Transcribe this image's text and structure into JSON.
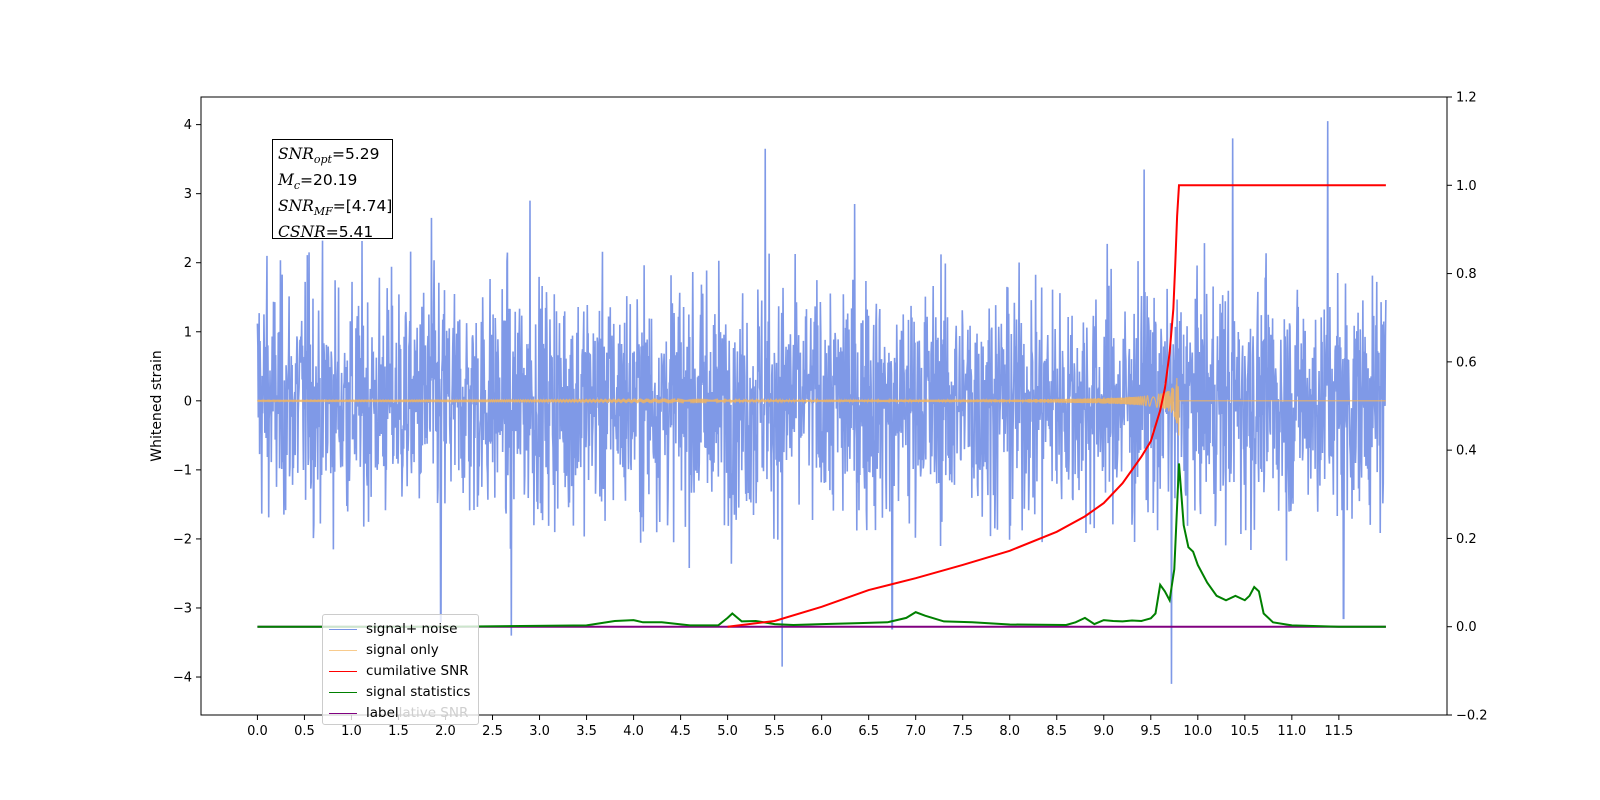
{
  "chart_data": {
    "type": "line",
    "ylabel": "Whitened strain",
    "xlim": [
      -0.6,
      12.65
    ],
    "ylim_left": [
      -4.55,
      4.4
    ],
    "ylim_right": [
      -0.2,
      1.2
    ],
    "x_ticks": [
      "0.0",
      "0.5",
      "1.0",
      "1.5",
      "2.0",
      "2.5",
      "3.0",
      "3.5",
      "4.0",
      "4.5",
      "5.0",
      "5.5",
      "6.0",
      "6.5",
      "7.0",
      "7.5",
      "8.0",
      "8.5",
      "9.0",
      "9.5",
      "10.0",
      "10.5",
      "11.0",
      "11.5"
    ],
    "y_ticks_left": [
      "4",
      "3",
      "2",
      "1",
      "0",
      "−1",
      "−2",
      "−3",
      "−4"
    ],
    "y_ticks_right": [
      "1.2",
      "1.0",
      "0.8",
      "0.6",
      "0.4",
      "0.2",
      "0.0",
      "−0.2"
    ],
    "stats": {
      "snr_opt": "=5.29",
      "mc": "=20.19",
      "snr_mf": "=[4.74]",
      "csnr": "=5.41"
    },
    "series": [
      {
        "name": "signal+ noise",
        "axis": "left",
        "color": "#7894e6",
        "x_range": [
          0.0,
          12.0
        ],
        "envelope": "noise ~ ±2.4 typical",
        "spikes": [
          [
            0.02,
            1.27
          ],
          [
            0.1,
            2.1
          ],
          [
            0.55,
            2.15
          ],
          [
            1.85,
            2.65
          ],
          [
            1.95,
            -3.2
          ],
          [
            2.7,
            -3.4
          ],
          [
            2.9,
            2.9
          ],
          [
            5.4,
            3.65
          ],
          [
            5.58,
            -3.85
          ],
          [
            6.35,
            2.85
          ],
          [
            6.75,
            -3.3
          ],
          [
            9.43,
            3.35
          ],
          [
            9.72,
            -4.1
          ],
          [
            10.37,
            3.8
          ],
          [
            11.38,
            4.05
          ],
          [
            11.55,
            -3.15
          ]
        ]
      },
      {
        "name": "signal only",
        "axis": "left",
        "color": "#f5b55c",
        "description_points": [
          [
            0.0,
            0.0
          ],
          [
            8.0,
            0.04
          ],
          [
            9.0,
            0.12
          ],
          [
            9.5,
            0.3
          ],
          [
            9.7,
            0.6
          ],
          [
            9.78,
            0.95
          ]
        ]
      },
      {
        "name": "cumilative SNR",
        "axis": "right",
        "color": "#ff0000",
        "x": [
          5.0,
          5.5,
          6.0,
          6.5,
          7.0,
          7.5,
          8.0,
          8.5,
          8.8,
          9.0,
          9.2,
          9.4,
          9.5,
          9.6,
          9.65,
          9.7,
          9.74,
          9.76,
          9.78,
          9.8,
          9.9,
          10.5,
          11.0,
          12.0
        ],
        "values": [
          0.0,
          0.013,
          0.045,
          0.083,
          0.11,
          0.14,
          0.172,
          0.215,
          0.25,
          0.28,
          0.325,
          0.385,
          0.42,
          0.49,
          0.54,
          0.62,
          0.72,
          0.82,
          0.93,
          1.0,
          1.0,
          1.0,
          1.0,
          1.0
        ]
      },
      {
        "name": "signal statistics",
        "axis": "right",
        "color": "#008000",
        "x": [
          0.0,
          2.0,
          3.5,
          3.8,
          4.0,
          4.1,
          4.3,
          4.6,
          4.9,
          5.0,
          5.05,
          5.15,
          5.3,
          5.5,
          5.7,
          6.0,
          6.4,
          6.7,
          6.9,
          7.0,
          7.1,
          7.3,
          7.6,
          8.0,
          8.6,
          8.7,
          8.8,
          8.9,
          9.0,
          9.1,
          9.2,
          9.3,
          9.4,
          9.5,
          9.55,
          9.6,
          9.65,
          9.7,
          9.75,
          9.8,
          9.85,
          9.9,
          9.95,
          10.0,
          10.1,
          10.2,
          10.3,
          10.4,
          10.5,
          10.55,
          10.6,
          10.65,
          10.7,
          10.8,
          11.0,
          11.5,
          12.0
        ],
        "values": [
          0.0,
          0.0,
          0.003,
          0.013,
          0.015,
          0.01,
          0.01,
          0.003,
          0.003,
          0.02,
          0.03,
          0.012,
          0.013,
          0.006,
          0.004,
          0.006,
          0.008,
          0.01,
          0.02,
          0.033,
          0.025,
          0.012,
          0.01,
          0.005,
          0.004,
          0.01,
          0.02,
          0.006,
          0.015,
          0.013,
          0.012,
          0.014,
          0.013,
          0.019,
          0.03,
          0.095,
          0.08,
          0.06,
          0.13,
          0.37,
          0.23,
          0.18,
          0.17,
          0.14,
          0.1,
          0.07,
          0.06,
          0.07,
          0.06,
          0.07,
          0.09,
          0.08,
          0.03,
          0.01,
          0.003,
          0.0,
          0.0
        ]
      },
      {
        "name": "label",
        "axis": "right",
        "color": "#800080",
        "x": [
          0.0,
          12.0
        ],
        "values": [
          0.0,
          0.0
        ]
      }
    ],
    "legend": {
      "position": "lower-left",
      "items": [
        {
          "label": "signal+ noise",
          "color": "#7894e6"
        },
        {
          "label": "signal only",
          "color": "#f5b55c"
        },
        {
          "label": "cumilative SNR",
          "color": "#ff0000"
        },
        {
          "label": "signal statistics",
          "color": "#008000"
        },
        {
          "label": "label",
          "color": "#800080",
          "ghost": "lative SNR"
        }
      ]
    },
    "grid": false
  }
}
